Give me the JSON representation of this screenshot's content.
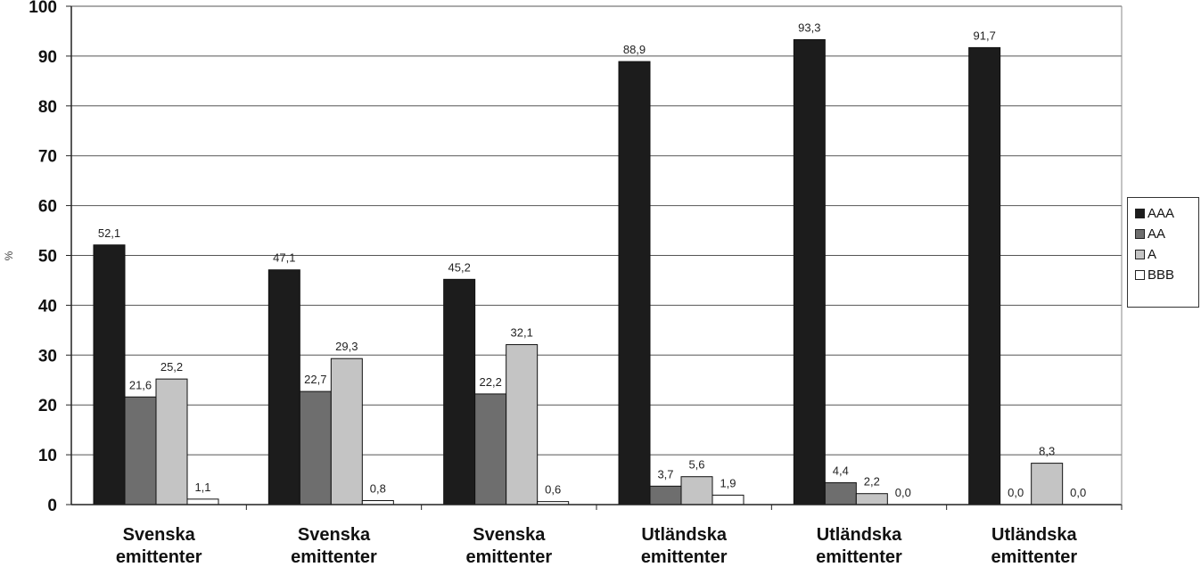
{
  "chart_data": {
    "type": "bar",
    "ylabel": "%",
    "ylim": [
      0,
      100
    ],
    "yticks": [
      "0",
      "10",
      "20",
      "30",
      "40",
      "50",
      "60",
      "70",
      "80",
      "90",
      "100"
    ],
    "grid": true,
    "legend_position": "right",
    "categories": [
      [
        "Svenska",
        "emittenter"
      ],
      [
        "Svenska",
        "emittenter"
      ],
      [
        "Svenska",
        "emittenter"
      ],
      [
        "Utländska",
        "emittenter"
      ],
      [
        "Utländska",
        "emittenter"
      ],
      [
        "Utländska",
        "emittenter"
      ]
    ],
    "series": [
      {
        "name": "AAA",
        "color": "#1c1c1c",
        "values": [
          52.1,
          47.1,
          45.2,
          88.9,
          93.3,
          91.7
        ],
        "labels": [
          "52,1",
          "47,1",
          "45,2",
          "88,9",
          "93,3",
          "91,7"
        ]
      },
      {
        "name": "AA",
        "color": "#6e6e6e",
        "values": [
          21.6,
          22.7,
          22.2,
          3.7,
          4.4,
          0.0
        ],
        "labels": [
          "21,6",
          "22,7",
          "22,2",
          "3,7",
          "4,4",
          "0,0"
        ]
      },
      {
        "name": "A",
        "color": "#c4c4c4",
        "values": [
          25.2,
          29.3,
          32.1,
          5.6,
          2.2,
          8.3
        ],
        "labels": [
          "25,2",
          "29,3",
          "32,1",
          "5,6",
          "2,2",
          "8,3"
        ]
      },
      {
        "name": "BBB",
        "color": "#ffffff",
        "values": [
          1.1,
          0.8,
          0.6,
          1.9,
          0.0,
          0.0
        ],
        "labels": [
          "1,1",
          "0,8",
          "0,6",
          "1,9",
          "0,0",
          "0,0"
        ]
      }
    ]
  }
}
